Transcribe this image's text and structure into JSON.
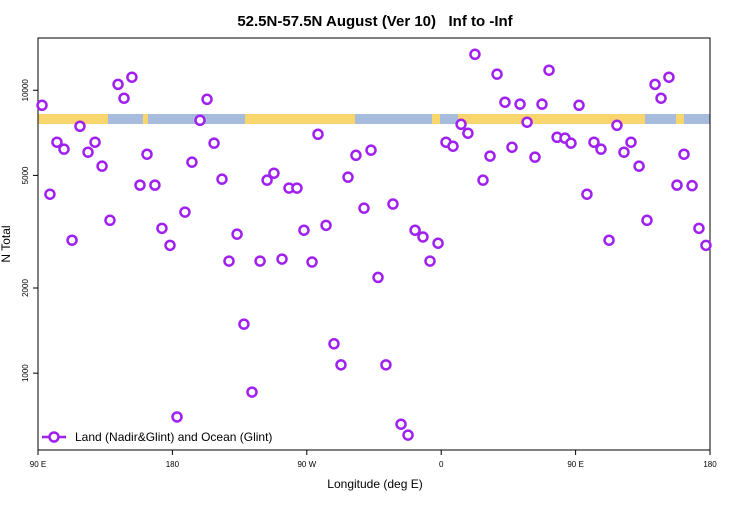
{
  "chart_data": {
    "type": "scatter",
    "title": "52.5N-57.5N August (Ver 10)   Inf to -Inf",
    "x_label": "Longitude (deg E)",
    "y_label": "N Total",
    "log_y": true,
    "legend": "bottom-left",
    "xlim": [
      90,
      540
    ],
    "xticks": [
      {
        "value": 90,
        "label": "90 E"
      },
      {
        "value": 180,
        "label": "180"
      },
      {
        "value": 270,
        "label": "90 W"
      },
      {
        "value": 360,
        "label": "0"
      },
      {
        "value": 450,
        "label": "90 E"
      },
      {
        "value": 540,
        "label": "180"
      }
    ],
    "ylim": [
      535,
      15300
    ],
    "yticks": [
      1000,
      2000,
      5000,
      10000
    ],
    "series": [
      {
        "name": "Land (Nadir&Glint) and Ocean (Glint)",
        "color": "#a020f0",
        "x": [
          92.7,
          98,
          102.7,
          107.4,
          112.8,
          118.1,
          123.5,
          128.2,
          132.9,
          138.2,
          143.6,
          147.6,
          152.9,
          158.3,
          163,
          168.3,
          173,
          178.4,
          183.1,
          188.4,
          193.1,
          198.5,
          203.2,
          207.9,
          213.2,
          217.9,
          223.3,
          227.9,
          233.3,
          238.7,
          243.4,
          248,
          253.4,
          258.1,
          263.4,
          268.1,
          273.5,
          277.5,
          282.9,
          288.2,
          292.9,
          297.6,
          302.9,
          308.3,
          313,
          317.7,
          323,
          327.7,
          333.1,
          337.8,
          342.5,
          347.8,
          352.5,
          357.9,
          363.2,
          367.9,
          373.3,
          377.9,
          382.6,
          388,
          392.7,
          397.4,
          402.7,
          407.4,
          412.8,
          417.5,
          422.8,
          427.5,
          432.2,
          437.6,
          442.9,
          446.9,
          452.3,
          457.6,
          462.3,
          467,
          472.4,
          477.7,
          482.4,
          487.1,
          492.5,
          497.8,
          503.2,
          507.2,
          512.5,
          517.9,
          522.6,
          528,
          532.6,
          537.3
        ],
        "values": [
          8850,
          4290,
          6550,
          6190,
          2950,
          7460,
          6040,
          6550,
          5390,
          3470,
          10490,
          9370,
          11120,
          4620,
          5940,
          4620,
          3250,
          2830,
          700,
          3710,
          5570,
          7830,
          9290,
          6500,
          4850,
          2490,
          3100,
          1490,
          857,
          2490,
          4810,
          5090,
          2530,
          4510,
          4510,
          3200,
          2470,
          6990,
          3330,
          1270,
          1070,
          4930,
          5890,
          3830,
          6140,
          2180,
          1070,
          3960,
          660,
          604,
          3200,
          3030,
          2490,
          2880,
          6550,
          6340,
          7580,
          7050,
          13400,
          4810,
          5850,
          11400,
          9070,
          6290,
          8930,
          7710,
          5800,
          8930,
          11770,
          6820,
          6770,
          6500,
          8850,
          4290,
          6550,
          6190,
          2950,
          7520,
          6040,
          6550,
          5390,
          3470,
          10490,
          9370,
          11120,
          4620,
          5940,
          4600,
          3250,
          2830
        ]
      }
    ]
  }
}
